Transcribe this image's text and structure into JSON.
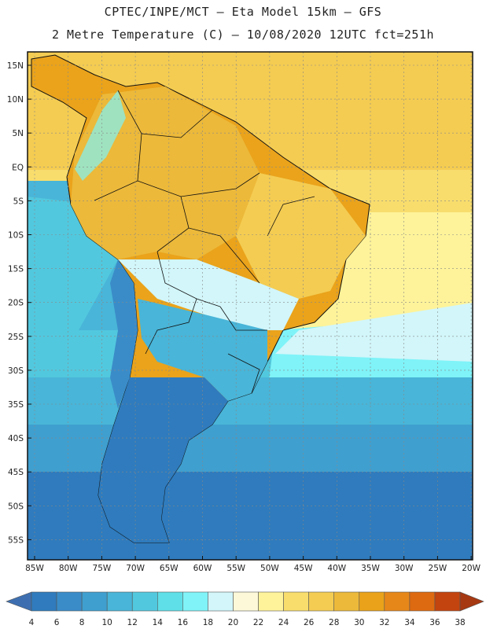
{
  "header": {
    "line1": "CPTEC/INPE/MCT –  Eta Model 15km – GFS",
    "line2": "2 Metre Temperature (C) – 10/08/2020 12UTC fct=251h"
  },
  "axes": {
    "lat_labels": [
      "15N",
      "10N",
      "5N",
      "EQ",
      "5S",
      "10S",
      "15S",
      "20S",
      "25S",
      "30S",
      "35S",
      "40S",
      "45S",
      "50S",
      "55S"
    ],
    "lon_labels": [
      "85W",
      "80W",
      "75W",
      "70W",
      "65W",
      "60W",
      "55W",
      "50W",
      "45W",
      "40W",
      "35W",
      "30W",
      "25W",
      "20W"
    ]
  },
  "colorbar": {
    "labels": [
      "4",
      "6",
      "8",
      "10",
      "12",
      "14",
      "16",
      "18",
      "20",
      "22",
      "24",
      "26",
      "28",
      "30",
      "32",
      "34",
      "36",
      "38"
    ],
    "colors": [
      "#3d6fb0",
      "#2f7bbd",
      "#3a8cc8",
      "#3f9fcf",
      "#49b5d8",
      "#52c8de",
      "#5fdfe8",
      "#7ff3f8",
      "#d2f6fa",
      "#fdf8d8",
      "#fef39a",
      "#f8dd6d",
      "#f4cc52",
      "#ecb93a",
      "#e9a21a",
      "#e6871a",
      "#dd6a10",
      "#c3440f",
      "#a63812"
    ]
  }
}
